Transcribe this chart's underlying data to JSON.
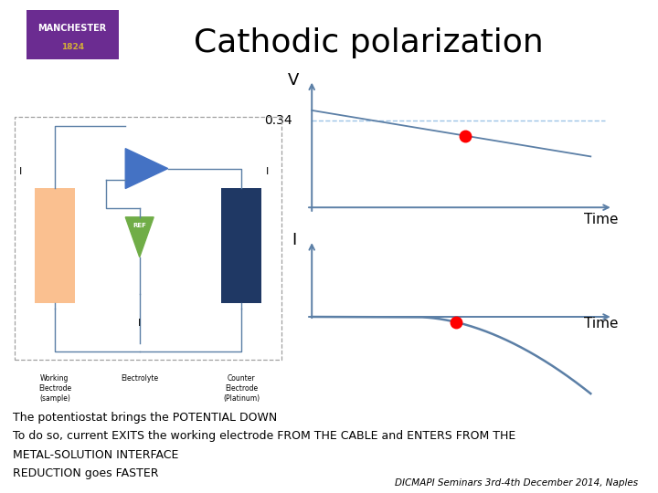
{
  "title": "Cathodic polarization",
  "title_fontsize": 26,
  "title_color": "#000000",
  "background_color": "#ffffff",
  "axis_color": "#5B7FA6",
  "line_color": "#5B7FA6",
  "dashed_color": "#9DC3E6",
  "dot_color": "#FF0000",
  "v_label": "V",
  "i_label": "I",
  "time_label": "Time",
  "v_value_label": "0.34",
  "body_text_line1": "The potentiostat brings the POTENTIAL DOWN",
  "body_text_line2": "To do so, current EXITS the working electrode FROM THE CABLE and ENTERS FROM THE",
  "body_text_line3": "METAL-SOLUTION INTERFACE",
  "body_text_line4": "REDUCTION goes FASTER",
  "footer_text": "DICMAPI Seminars 3rd-4th December 2014, Naples",
  "manchester_bg": "#6B2C91",
  "manchester_text1": "MANCHESTER",
  "manchester_text2": "1824"
}
